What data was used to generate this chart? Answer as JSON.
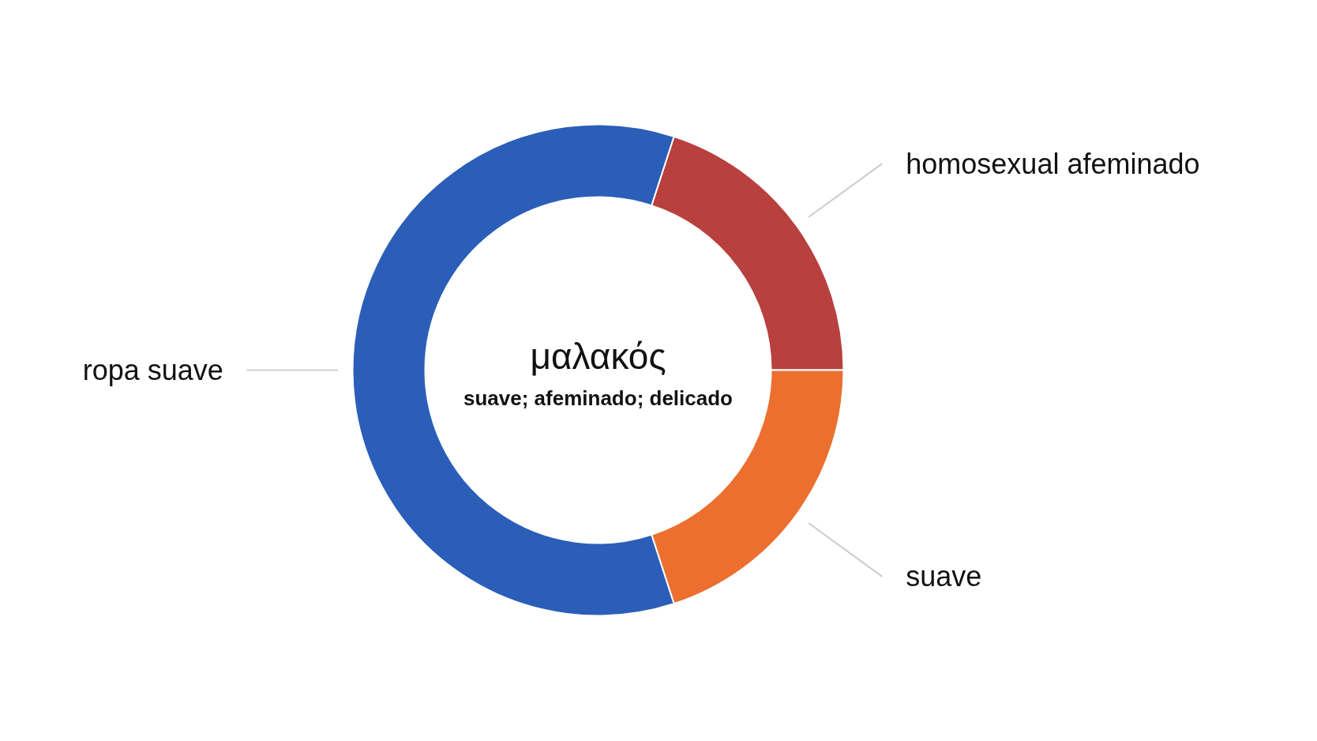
{
  "chart_data": {
    "type": "donut",
    "title": "μαλακός",
    "subtitle": "suave; afeminado; delicado",
    "categories": [
      "homosexual afeminado",
      "suave",
      "ropa suave"
    ],
    "values": [
      20,
      20,
      60
    ],
    "colors": [
      "#b8403e",
      "#ec6f2f",
      "#2b5eb8"
    ]
  }
}
